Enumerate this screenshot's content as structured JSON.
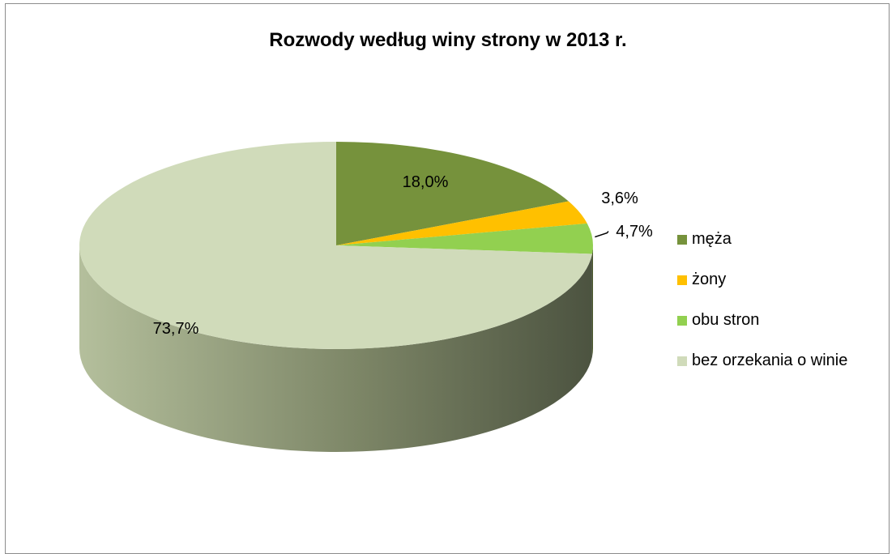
{
  "chart_data": {
    "type": "pie",
    "title": "Rozwody według winy strony w 2013 r.",
    "categories": [
      "męża",
      "żony",
      "obu stron",
      "bez orzekania o winie"
    ],
    "values": [
      18.0,
      3.6,
      4.7,
      73.7
    ],
    "data_labels": [
      "18,0%",
      "3,6%",
      "4,7%",
      "73,7%"
    ],
    "colors": [
      "#76923C",
      "#FFC000",
      "#92D050",
      "#D0DBBA"
    ],
    "legend_position": "right",
    "style": "3d"
  }
}
